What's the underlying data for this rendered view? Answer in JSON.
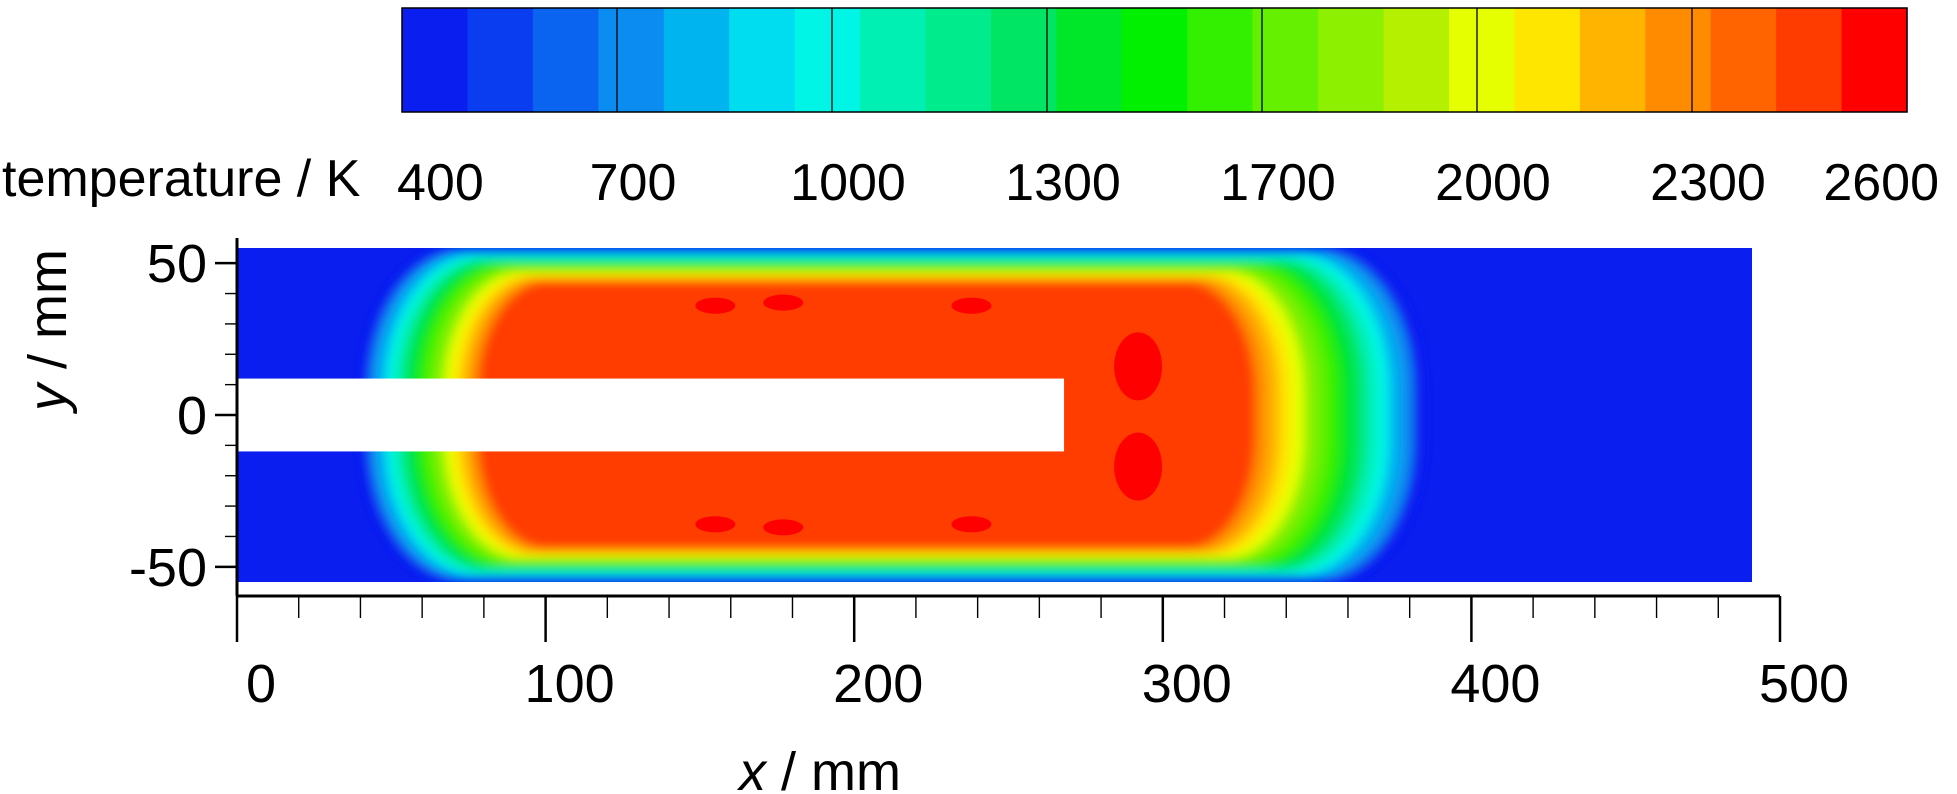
{
  "chart_data": {
    "type": "heatmap",
    "title": "",
    "xlabel": {
      "var": "x",
      "unit": " / mm"
    },
    "ylabel": {
      "var": "y",
      "unit": " / mm"
    },
    "xlim": [
      0,
      500
    ],
    "ylim": [
      -55,
      55
    ],
    "x_ticks": [
      "0",
      "100",
      "200",
      "300",
      "400",
      "500"
    ],
    "y_ticks": [
      "50",
      "0",
      "-50"
    ],
    "colorbar": {
      "title": "temperature / K",
      "range": [
        300,
        2650
      ],
      "tick_labels": [
        "400",
        "700",
        "1000",
        "1300",
        "1700",
        "2000",
        "2300",
        "2600"
      ],
      "level_colors": [
        "#0a1ef0",
        "#0a3cf0",
        "#0a64f0",
        "#0a8cf0",
        "#00b4f0",
        "#00dcf0",
        "#00f5e6",
        "#00f0b4",
        "#00eb8c",
        "#00e664",
        "#00e628",
        "#00f000",
        "#32f000",
        "#64f000",
        "#8cf000",
        "#b4f000",
        "#e6ff00",
        "#ffe600",
        "#ffb400",
        "#ff8c00",
        "#ff6400",
        "#ff3c00",
        "#ff0000"
      ]
    },
    "field": {
      "ambient_temperature": 400,
      "core_temperature": 2450,
      "hot_spot_temperature": 2580,
      "flame_extent_x": [
        40,
        385
      ],
      "flame_half_height": 55,
      "hot_core_extent_x": [
        78,
        330
      ],
      "hot_core_half_height": 44,
      "inlet_jet": {
        "x": [
          0,
          268
        ],
        "y": [
          -12,
          12
        ]
      },
      "hot_spots": [
        {
          "x": 155,
          "y": 36
        },
        {
          "x": 177,
          "y": 37
        },
        {
          "x": 238,
          "y": 36
        },
        {
          "x": 155,
          "y": -36
        },
        {
          "x": 177,
          "y": -37
        },
        {
          "x": 238,
          "y": -36
        },
        {
          "x": 292,
          "y": 16
        },
        {
          "x": 292,
          "y": -17
        }
      ]
    }
  }
}
